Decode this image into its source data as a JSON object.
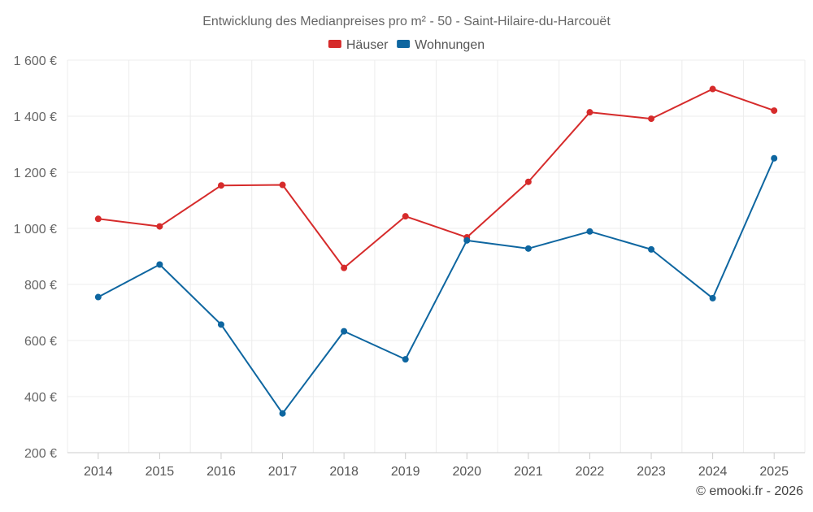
{
  "chart_data": {
    "type": "line",
    "title": "Entwicklung des Medianpreises pro m² - 50 - Saint-Hilaire-du-Harcouët",
    "categories": [
      "2014",
      "2015",
      "2016",
      "2017",
      "2018",
      "2019",
      "2020",
      "2021",
      "2022",
      "2023",
      "2024",
      "2025"
    ],
    "y_ticks": [
      200,
      400,
      600,
      800,
      1000,
      1200,
      1400,
      1600
    ],
    "y_tick_labels": [
      "200 €",
      "400 €",
      "600 €",
      "800 €",
      "1 000 €",
      "1 200 €",
      "1 400 €",
      "1 600 €"
    ],
    "ylim": [
      200,
      1600
    ],
    "xlabel": "",
    "ylabel": "",
    "legend_position": "top-center",
    "grid": true,
    "series": [
      {
        "name": "Häuser",
        "color": "#d62b2b",
        "values": [
          1034,
          1007,
          1153,
          1155,
          859,
          1043,
          968,
          1166,
          1414,
          1391,
          1497,
          1420
        ]
      },
      {
        "name": "Wohnungen",
        "color": "#0e66a0",
        "values": [
          755,
          871,
          657,
          340,
          633,
          533,
          957,
          928,
          989,
          925,
          751,
          1250
        ]
      }
    ]
  },
  "credit": "© emooki.fr - 2026"
}
